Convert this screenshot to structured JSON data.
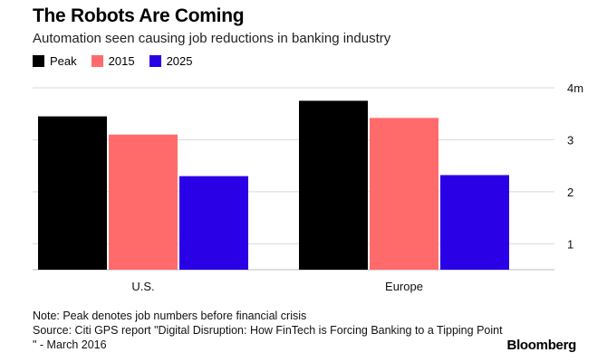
{
  "header": {
    "title": "The Robots Are Coming",
    "subtitle": "Automation seen causing job reductions in banking industry"
  },
  "legend": [
    {
      "label": "Peak",
      "color": "#000000"
    },
    {
      "label": "2015",
      "color": "#ff6b6b"
    },
    {
      "label": "2025",
      "color": "#2a00e6"
    }
  ],
  "chart_data": {
    "type": "bar",
    "title": "The Robots Are Coming",
    "xlabel": "",
    "ylabel": "",
    "categories": [
      "U.S.",
      "Europe"
    ],
    "series": [
      {
        "name": "Peak",
        "values": [
          3.45,
          3.75
        ],
        "color": "#000000"
      },
      {
        "name": "2015",
        "values": [
          3.1,
          3.42
        ],
        "color": "#ff6b6b"
      },
      {
        "name": "2025",
        "values": [
          2.3,
          2.32
        ],
        "color": "#2a00e6"
      }
    ],
    "ylim": [
      0.5,
      4
    ],
    "yticks": [
      {
        "value": 1,
        "label": "1"
      },
      {
        "value": 2,
        "label": "2"
      },
      {
        "value": 3,
        "label": "3"
      },
      {
        "value": 4,
        "label": "4m"
      }
    ],
    "grid": true
  },
  "footer": {
    "note": "Note: Peak denotes job numbers before financial crisis",
    "source": "Source: Citi GPS report \"Digital Disruption: How FinTech is Forcing Banking to a Tipping Point \" - March 2016",
    "brand": "Bloomberg"
  }
}
